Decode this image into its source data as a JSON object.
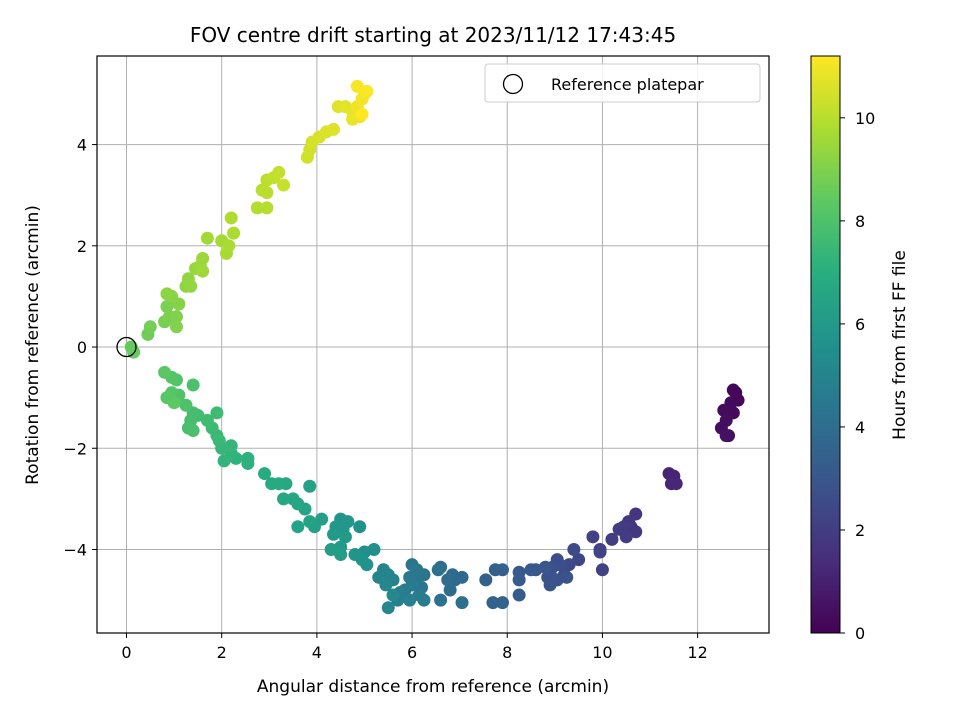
{
  "chart_data": {
    "type": "scatter",
    "title": "FOV centre drift starting at 2023/11/12 17:43:45",
    "xlabel": "Angular distance from reference (arcmin)",
    "ylabel": "Rotation from reference (arcmin)",
    "xlim": [
      -0.62,
      13.5
    ],
    "ylim": [
      -5.65,
      5.75
    ],
    "xticks": [
      0,
      2,
      4,
      6,
      8,
      10,
      12
    ],
    "yticks": [
      -4,
      -2,
      0,
      2,
      4
    ],
    "xtick_labels": [
      "0",
      "2",
      "4",
      "6",
      "8",
      "10",
      "12"
    ],
    "ytick_labels": [
      "−4",
      "−2",
      "0",
      "2",
      "4"
    ],
    "grid": true,
    "legend": {
      "location": "top-right",
      "entries": [
        "Reference platepar"
      ]
    },
    "reference_point": {
      "x": 0,
      "y": 0,
      "marker": "open-circle",
      "label": "Reference platepar"
    },
    "colormap": "viridis",
    "colorbar": {
      "label": "Hours from first FF file",
      "range": [
        0,
        11.2
      ],
      "ticks": [
        0,
        2,
        4,
        6,
        8,
        10
      ],
      "tick_labels": [
        "0",
        "2",
        "4",
        "6",
        "8",
        "10"
      ]
    },
    "points": [
      {
        "x": 12.8,
        "y": -0.9,
        "c": 0.1
      },
      {
        "x": 12.75,
        "y": -0.85,
        "c": 0.15
      },
      {
        "x": 12.85,
        "y": -1.05,
        "c": 0.2
      },
      {
        "x": 12.7,
        "y": -1.1,
        "c": 0.25
      },
      {
        "x": 12.75,
        "y": -1.3,
        "c": 0.3
      },
      {
        "x": 12.55,
        "y": -1.25,
        "c": 0.35
      },
      {
        "x": 12.6,
        "y": -1.45,
        "c": 0.4
      },
      {
        "x": 12.5,
        "y": -1.6,
        "c": 0.45
      },
      {
        "x": 12.6,
        "y": -1.75,
        "c": 0.5
      },
      {
        "x": 12.65,
        "y": -1.75,
        "c": 0.55
      },
      {
        "x": 11.4,
        "y": -2.5,
        "c": 1.1
      },
      {
        "x": 11.5,
        "y": -2.55,
        "c": 1.15
      },
      {
        "x": 11.45,
        "y": -2.7,
        "c": 1.2
      },
      {
        "x": 11.55,
        "y": -2.7,
        "c": 1.25
      },
      {
        "x": 10.7,
        "y": -3.3,
        "c": 1.7
      },
      {
        "x": 10.55,
        "y": -3.45,
        "c": 1.75
      },
      {
        "x": 10.6,
        "y": -3.55,
        "c": 1.8
      },
      {
        "x": 10.7,
        "y": -3.65,
        "c": 1.85
      },
      {
        "x": 10.45,
        "y": -3.55,
        "c": 1.9
      },
      {
        "x": 10.35,
        "y": -3.6,
        "c": 1.95
      },
      {
        "x": 10.5,
        "y": -3.75,
        "c": 2.0
      },
      {
        "x": 10.2,
        "y": -3.8,
        "c": 2.05
      },
      {
        "x": 9.95,
        "y": -4.0,
        "c": 2.1
      },
      {
        "x": 9.8,
        "y": -3.75,
        "c": 2.15
      },
      {
        "x": 10.0,
        "y": -4.4,
        "c": 2.2
      },
      {
        "x": 9.95,
        "y": -4.05,
        "c": 2.25
      },
      {
        "x": 9.5,
        "y": -4.2,
        "c": 2.4
      },
      {
        "x": 9.4,
        "y": -4.0,
        "c": 2.45
      },
      {
        "x": 9.3,
        "y": -4.3,
        "c": 2.5
      },
      {
        "x": 9.2,
        "y": -4.5,
        "c": 2.55
      },
      {
        "x": 9.05,
        "y": -4.2,
        "c": 2.6
      },
      {
        "x": 9.1,
        "y": -4.3,
        "c": 2.65
      },
      {
        "x": 8.95,
        "y": -4.35,
        "c": 2.7
      },
      {
        "x": 8.9,
        "y": -4.45,
        "c": 2.75
      },
      {
        "x": 8.85,
        "y": -4.55,
        "c": 2.8
      },
      {
        "x": 9.05,
        "y": -4.6,
        "c": 2.85
      },
      {
        "x": 9.25,
        "y": -4.55,
        "c": 2.9
      },
      {
        "x": 8.9,
        "y": -4.7,
        "c": 2.95
      },
      {
        "x": 8.8,
        "y": -4.35,
        "c": 3.0
      },
      {
        "x": 8.6,
        "y": -4.4,
        "c": 3.05
      },
      {
        "x": 8.5,
        "y": -4.4,
        "c": 3.1
      },
      {
        "x": 8.25,
        "y": -4.45,
        "c": 3.15
      },
      {
        "x": 8.25,
        "y": -4.6,
        "c": 3.2
      },
      {
        "x": 8.25,
        "y": -4.9,
        "c": 3.25
      },
      {
        "x": 7.9,
        "y": -4.4,
        "c": 3.35
      },
      {
        "x": 7.75,
        "y": -4.4,
        "c": 3.4
      },
      {
        "x": 7.55,
        "y": -4.6,
        "c": 3.45
      },
      {
        "x": 7.9,
        "y": -5.05,
        "c": 3.5
      },
      {
        "x": 7.7,
        "y": -5.05,
        "c": 3.55
      },
      {
        "x": 7.05,
        "y": -4.55,
        "c": 3.8
      },
      {
        "x": 6.9,
        "y": -4.6,
        "c": 3.85
      },
      {
        "x": 6.85,
        "y": -4.5,
        "c": 3.9
      },
      {
        "x": 6.75,
        "y": -4.6,
        "c": 3.95
      },
      {
        "x": 6.8,
        "y": -4.8,
        "c": 4.0
      },
      {
        "x": 7.05,
        "y": -5.05,
        "c": 4.05
      },
      {
        "x": 6.6,
        "y": -4.35,
        "c": 4.1
      },
      {
        "x": 6.55,
        "y": -4.4,
        "c": 4.15
      },
      {
        "x": 6.6,
        "y": -5.0,
        "c": 4.2
      },
      {
        "x": 6.25,
        "y": -4.5,
        "c": 4.25
      },
      {
        "x": 6.2,
        "y": -4.75,
        "c": 4.3
      },
      {
        "x": 6.1,
        "y": -4.6,
        "c": 4.35
      },
      {
        "x": 6.0,
        "y": -4.3,
        "c": 4.4
      },
      {
        "x": 6.1,
        "y": -4.4,
        "c": 4.45
      },
      {
        "x": 5.95,
        "y": -4.55,
        "c": 4.5
      },
      {
        "x": 6.0,
        "y": -4.7,
        "c": 4.55
      },
      {
        "x": 6.15,
        "y": -4.9,
        "c": 4.6
      },
      {
        "x": 6.25,
        "y": -5.0,
        "c": 4.65
      },
      {
        "x": 5.85,
        "y": -4.8,
        "c": 4.7
      },
      {
        "x": 5.75,
        "y": -4.85,
        "c": 4.75
      },
      {
        "x": 5.7,
        "y": -5.0,
        "c": 4.8
      },
      {
        "x": 5.95,
        "y": -5.0,
        "c": 4.85
      },
      {
        "x": 5.6,
        "y": -4.6,
        "c": 4.9
      },
      {
        "x": 5.5,
        "y": -4.5,
        "c": 4.95
      },
      {
        "x": 5.4,
        "y": -4.4,
        "c": 5.0
      },
      {
        "x": 5.3,
        "y": -4.55,
        "c": 5.05
      },
      {
        "x": 5.45,
        "y": -4.7,
        "c": 5.1
      },
      {
        "x": 5.5,
        "y": -5.15,
        "c": 5.15
      },
      {
        "x": 5.6,
        "y": -4.9,
        "c": 5.2
      },
      {
        "x": 5.2,
        "y": -4.0,
        "c": 5.5
      },
      {
        "x": 5.0,
        "y": -4.05,
        "c": 5.55
      },
      {
        "x": 4.9,
        "y": -3.55,
        "c": 5.6
      },
      {
        "x": 4.95,
        "y": -4.2,
        "c": 5.65
      },
      {
        "x": 5.05,
        "y": -4.3,
        "c": 5.7
      },
      {
        "x": 4.8,
        "y": -4.1,
        "c": 5.75
      },
      {
        "x": 4.5,
        "y": -3.4,
        "c": 5.8
      },
      {
        "x": 4.55,
        "y": -3.6,
        "c": 5.85
      },
      {
        "x": 4.65,
        "y": -3.45,
        "c": 5.9
      },
      {
        "x": 4.4,
        "y": -3.55,
        "c": 5.95
      },
      {
        "x": 4.35,
        "y": -3.7,
        "c": 6.0
      },
      {
        "x": 4.6,
        "y": -3.75,
        "c": 6.05
      },
      {
        "x": 4.5,
        "y": -3.95,
        "c": 6.1
      },
      {
        "x": 4.3,
        "y": -4.0,
        "c": 6.15
      },
      {
        "x": 4.5,
        "y": -4.1,
        "c": 6.2
      },
      {
        "x": 4.1,
        "y": -3.4,
        "c": 6.25
      },
      {
        "x": 3.95,
        "y": -3.55,
        "c": 6.3
      },
      {
        "x": 3.85,
        "y": -3.45,
        "c": 6.35
      },
      {
        "x": 3.85,
        "y": -2.75,
        "c": 6.4
      },
      {
        "x": 3.6,
        "y": -3.55,
        "c": 6.45
      },
      {
        "x": 3.75,
        "y": -3.2,
        "c": 6.5
      },
      {
        "x": 3.6,
        "y": -3.1,
        "c": 6.55
      },
      {
        "x": 3.5,
        "y": -3.0,
        "c": 6.6
      },
      {
        "x": 3.3,
        "y": -3.0,
        "c": 6.65
      },
      {
        "x": 3.35,
        "y": -2.7,
        "c": 6.7
      },
      {
        "x": 3.2,
        "y": -2.7,
        "c": 6.75
      },
      {
        "x": 3.05,
        "y": -2.7,
        "c": 6.8
      },
      {
        "x": 2.9,
        "y": -2.5,
        "c": 6.85
      },
      {
        "x": 2.55,
        "y": -2.3,
        "c": 7.1
      },
      {
        "x": 2.55,
        "y": -2.2,
        "c": 7.15
      },
      {
        "x": 2.3,
        "y": -2.2,
        "c": 7.2
      },
      {
        "x": 2.2,
        "y": -2.1,
        "c": 7.25
      },
      {
        "x": 2.05,
        "y": -2.25,
        "c": 7.3
      },
      {
        "x": 2.2,
        "y": -1.95,
        "c": 7.35
      },
      {
        "x": 2.0,
        "y": -2.0,
        "c": 7.4
      },
      {
        "x": 1.95,
        "y": -1.85,
        "c": 7.45
      },
      {
        "x": 1.9,
        "y": -1.75,
        "c": 7.5
      },
      {
        "x": 1.8,
        "y": -1.6,
        "c": 7.55
      },
      {
        "x": 1.9,
        "y": -1.3,
        "c": 7.6
      },
      {
        "x": 1.7,
        "y": -1.45,
        "c": 7.65
      },
      {
        "x": 1.5,
        "y": -1.35,
        "c": 7.7
      },
      {
        "x": 1.4,
        "y": -1.3,
        "c": 7.75
      },
      {
        "x": 1.35,
        "y": -1.45,
        "c": 7.8
      },
      {
        "x": 1.3,
        "y": -1.6,
        "c": 7.85
      },
      {
        "x": 1.4,
        "y": -1.65,
        "c": 7.9
      },
      {
        "x": 1.4,
        "y": -0.75,
        "c": 7.95
      },
      {
        "x": 1.25,
        "y": -1.15,
        "c": 8.0
      },
      {
        "x": 1.1,
        "y": -0.95,
        "c": 8.05
      },
      {
        "x": 1.05,
        "y": -0.65,
        "c": 8.1
      },
      {
        "x": 0.95,
        "y": -0.6,
        "c": 8.15
      },
      {
        "x": 0.95,
        "y": -0.9,
        "c": 8.2
      },
      {
        "x": 0.85,
        "y": -1.0,
        "c": 8.25
      },
      {
        "x": 0.8,
        "y": -0.5,
        "c": 8.3
      },
      {
        "x": 1.0,
        "y": -1.1,
        "c": 8.35
      },
      {
        "x": 0.15,
        "y": -0.1,
        "c": 8.55
      },
      {
        "x": 0.1,
        "y": 0.0,
        "c": 8.5
      },
      {
        "x": 0.45,
        "y": 0.25,
        "c": 8.7
      },
      {
        "x": 0.5,
        "y": 0.4,
        "c": 8.75
      },
      {
        "x": 0.8,
        "y": 0.5,
        "c": 8.85
      },
      {
        "x": 0.85,
        "y": 0.8,
        "c": 8.9
      },
      {
        "x": 0.9,
        "y": 0.6,
        "c": 8.95
      },
      {
        "x": 1.05,
        "y": 0.6,
        "c": 9.0
      },
      {
        "x": 1.05,
        "y": 0.4,
        "c": 9.05
      },
      {
        "x": 1.1,
        "y": 0.85,
        "c": 9.1
      },
      {
        "x": 0.95,
        "y": 1.0,
        "c": 9.15
      },
      {
        "x": 0.85,
        "y": 1.05,
        "c": 9.2
      },
      {
        "x": 1.25,
        "y": 1.2,
        "c": 9.25
      },
      {
        "x": 1.3,
        "y": 1.35,
        "c": 9.3
      },
      {
        "x": 1.35,
        "y": 1.2,
        "c": 9.35
      },
      {
        "x": 1.45,
        "y": 1.55,
        "c": 9.4
      },
      {
        "x": 1.55,
        "y": 1.6,
        "c": 9.45
      },
      {
        "x": 1.6,
        "y": 1.75,
        "c": 9.5
      },
      {
        "x": 1.6,
        "y": 1.5,
        "c": 9.55
      },
      {
        "x": 1.7,
        "y": 2.15,
        "c": 9.6
      },
      {
        "x": 2.0,
        "y": 2.1,
        "c": 9.65
      },
      {
        "x": 2.1,
        "y": 1.85,
        "c": 9.7
      },
      {
        "x": 2.15,
        "y": 2.0,
        "c": 9.75
      },
      {
        "x": 2.25,
        "y": 2.25,
        "c": 9.8
      },
      {
        "x": 2.2,
        "y": 2.55,
        "c": 9.85
      },
      {
        "x": 2.75,
        "y": 2.75,
        "c": 9.9
      },
      {
        "x": 2.95,
        "y": 2.75,
        "c": 9.95
      },
      {
        "x": 2.85,
        "y": 3.1,
        "c": 10.0
      },
      {
        "x": 2.95,
        "y": 3.05,
        "c": 10.05
      },
      {
        "x": 2.95,
        "y": 3.3,
        "c": 10.1
      },
      {
        "x": 3.1,
        "y": 3.35,
        "c": 10.15
      },
      {
        "x": 3.2,
        "y": 3.45,
        "c": 10.2
      },
      {
        "x": 3.3,
        "y": 3.2,
        "c": 10.25
      },
      {
        "x": 3.8,
        "y": 3.75,
        "c": 10.4
      },
      {
        "x": 3.85,
        "y": 3.9,
        "c": 10.45
      },
      {
        "x": 3.9,
        "y": 4.05,
        "c": 10.5
      },
      {
        "x": 4.05,
        "y": 4.15,
        "c": 10.55
      },
      {
        "x": 4.2,
        "y": 4.25,
        "c": 10.6
      },
      {
        "x": 4.35,
        "y": 4.3,
        "c": 10.65
      },
      {
        "x": 4.45,
        "y": 4.75,
        "c": 10.7
      },
      {
        "x": 4.6,
        "y": 4.75,
        "c": 10.75
      },
      {
        "x": 4.75,
        "y": 4.65,
        "c": 10.8
      },
      {
        "x": 4.75,
        "y": 4.5,
        "c": 10.85
      },
      {
        "x": 4.9,
        "y": 4.55,
        "c": 10.9
      },
      {
        "x": 4.85,
        "y": 4.75,
        "c": 10.95
      },
      {
        "x": 4.95,
        "y": 4.9,
        "c": 11.0
      },
      {
        "x": 5.0,
        "y": 5.0,
        "c": 11.05
      },
      {
        "x": 4.85,
        "y": 5.15,
        "c": 11.1
      },
      {
        "x": 5.05,
        "y": 5.05,
        "c": 11.15
      },
      {
        "x": 4.95,
        "y": 4.6,
        "c": 11.2
      }
    ]
  }
}
